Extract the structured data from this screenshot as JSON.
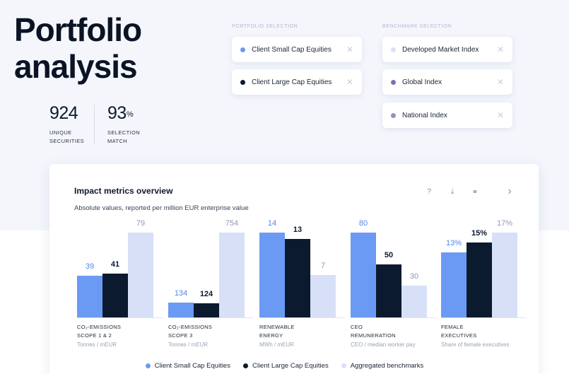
{
  "page": {
    "title_line1": "Portfolio",
    "title_line2": "analysis"
  },
  "stats": [
    {
      "value": "924",
      "suffix": "",
      "label_line1": "UNIQUE",
      "label_line2": "SECURITIES"
    },
    {
      "value": "93",
      "suffix": "%",
      "label_line1": "SELECTION",
      "label_line2": "MATCH"
    }
  ],
  "portfolio_selection": {
    "heading": "PORTFOLIO SELECTION",
    "items": [
      {
        "label": "Client Small Cap Equities",
        "color": "#6b9af5",
        "close_icon": "close-icon"
      },
      {
        "label": "Client Large Cap Equities",
        "color": "#0b1a2e",
        "close_icon": "close-icon"
      }
    ]
  },
  "benchmark_selection": {
    "heading": "BENCHMARK SELECTION",
    "items": [
      {
        "label": "Developed Market Index",
        "color": "#d7e0f7",
        "close_icon": "close-icon"
      },
      {
        "label": "Global Index",
        "color": "#7d6fb4",
        "close_icon": "close-icon"
      },
      {
        "label": "National Index",
        "color": "#9790b9",
        "close_icon": "close-icon"
      }
    ]
  },
  "card": {
    "title": "Impact metrics overview",
    "subtitle": "Absolute values, reported per million EUR enterprise value",
    "actions": [
      {
        "name": "help-icon",
        "glyph": "?"
      },
      {
        "name": "download-icon",
        "glyph": "⤓"
      },
      {
        "name": "link-icon",
        "glyph": "⚭"
      },
      {
        "name": "chevron-right-icon",
        "glyph": "›"
      }
    ]
  },
  "colors": {
    "small_cap": "#6b9af5",
    "large_cap": "#0b1a2e",
    "benchmark": "#d7e0f7",
    "small_cap_text": "#4f86f0",
    "benchmark_text": "#8e99b3"
  },
  "chart_data": {
    "type": "bar",
    "series": [
      {
        "name": "Client Small Cap Equities"
      },
      {
        "name": "Client Large Cap Equities"
      },
      {
        "name": "Aggregated benchmarks"
      }
    ],
    "metrics": [
      {
        "label_line1": "CO₂-EMISSIONS",
        "label_line2": "SCOPE 1 & 2",
        "unit": "Tonnes / mEUR",
        "values": [
          39,
          41,
          79
        ],
        "labels": [
          "39",
          "41",
          "79"
        ],
        "max": 79
      },
      {
        "label_line1": "CO₂-EMISSIONS",
        "label_line2": "SCOPE 3",
        "unit": "Tonnes / mEUR",
        "values": [
          134,
          124,
          754
        ],
        "labels": [
          "134",
          "124",
          "754"
        ],
        "max": 754
      },
      {
        "label_line1": "RENEWABLE",
        "label_line2": "ENERGY",
        "unit": "MWh / mEUR",
        "values": [
          14,
          13,
          7
        ],
        "labels": [
          "14",
          "13",
          "7"
        ],
        "max": 14
      },
      {
        "label_line1": "CEO",
        "label_line2": "REMUNERATION",
        "unit": "CEO / median worker pay",
        "values": [
          80,
          50,
          30
        ],
        "labels": [
          "80",
          "50",
          "30"
        ],
        "max": 80
      },
      {
        "label_line1": "FEMALE",
        "label_line2": "EXECUTIVES",
        "unit": "Share of female executives",
        "values": [
          13,
          15,
          17
        ],
        "labels": [
          "13%",
          "15%",
          "17%"
        ],
        "max": 17
      }
    ]
  },
  "legend": [
    {
      "label": "Client Small Cap Equities",
      "color": "#6b9af5"
    },
    {
      "label": "Client Large Cap Equities",
      "color": "#0b1a2e"
    },
    {
      "label": "Aggregated benchmarks",
      "color": "#d7e0f7"
    }
  ]
}
